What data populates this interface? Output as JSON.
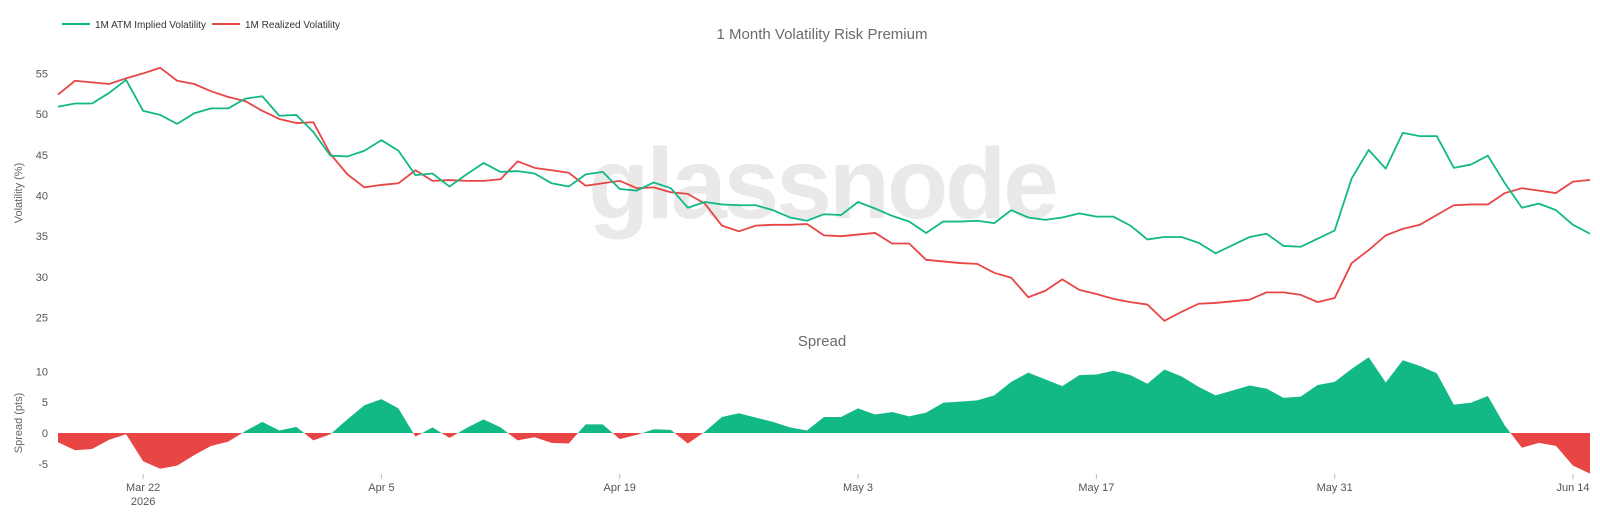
{
  "chart_data": [
    {
      "type": "line",
      "title": "1 Month Volatility Risk Premium",
      "ylabel": "Volatility (%)",
      "ylim": [
        22,
        58
      ],
      "yticks": [
        25,
        30,
        35,
        40,
        45,
        50,
        55
      ],
      "grid": false,
      "legend_position": "top-left",
      "series": [
        {
          "name": "1M ATM Implied Volatility",
          "color": "#12b886",
          "values": [
            50.9,
            51.3,
            51.3,
            52.6,
            54.2,
            50.4,
            49.9,
            48.8,
            50.1,
            50.7,
            50.7,
            51.9,
            52.2,
            49.8,
            49.9,
            47.8,
            44.9,
            44.8,
            45.5,
            46.8,
            45.5,
            42.5,
            42.7,
            41.1,
            42.6,
            44.0,
            42.9,
            43.0,
            42.7,
            41.5,
            41.1,
            42.6,
            42.9,
            40.8,
            40.6,
            41.6,
            40.9,
            38.5,
            39.2,
            38.9,
            38.8,
            38.8,
            38.2,
            37.3,
            36.9,
            37.7,
            37.6,
            39.2,
            38.4,
            37.5,
            36.8,
            35.4,
            36.8,
            36.8,
            36.9,
            36.6,
            38.2,
            37.3,
            37.0,
            37.3,
            37.8,
            37.4,
            37.4,
            36.3,
            34.6,
            34.9,
            34.9,
            34.2,
            32.9,
            33.9,
            34.9,
            35.3,
            33.8,
            33.7,
            34.7,
            35.7,
            42.1,
            45.6,
            43.3,
            47.7,
            47.3,
            47.3,
            43.4,
            43.8,
            44.9,
            41.5,
            38.5,
            39.0,
            38.2,
            36.4,
            35.3
          ]
        },
        {
          "name": "1M Realized Volatility",
          "color": "#e84545",
          "values": [
            52.4,
            54.1,
            53.9,
            53.7,
            54.4,
            55.0,
            55.7,
            54.1,
            53.7,
            52.8,
            52.1,
            51.6,
            50.4,
            49.4,
            48.9,
            49.0,
            45.1,
            42.6,
            41.0,
            41.3,
            41.5,
            43.1,
            41.8,
            41.9,
            41.8,
            41.8,
            42.0,
            44.2,
            43.4,
            43.1,
            42.8,
            41.2,
            41.5,
            41.8,
            40.9,
            41.0,
            40.4,
            40.2,
            39.0,
            36.3,
            35.6,
            36.3,
            36.4,
            36.4,
            36.5,
            35.1,
            35.0,
            35.2,
            35.4,
            34.1,
            34.1,
            32.1,
            31.9,
            31.7,
            31.6,
            30.5,
            29.9,
            27.5,
            28.3,
            29.7,
            28.4,
            27.9,
            27.3,
            26.9,
            26.6,
            24.6,
            25.7,
            26.7,
            26.8,
            27.0,
            27.2,
            28.1,
            28.1,
            27.8,
            26.9,
            27.4,
            31.7,
            33.3,
            35.1,
            35.9,
            36.4,
            37.6,
            38.8,
            38.9,
            38.9,
            40.3,
            40.9,
            40.6,
            40.3,
            41.7,
            41.9
          ]
        }
      ]
    },
    {
      "type": "area",
      "title": "Spread",
      "ylabel": "Spread (pts)",
      "ylim": [
        -6.5,
        12.5
      ],
      "yticks": [
        -5,
        0,
        5,
        10
      ],
      "positive_color": "#12b886",
      "negative_color": "#e84545",
      "x_tick_labels": [
        {
          "index": 5,
          "label": "Mar 22",
          "sublabel": "2026"
        },
        {
          "index": 19,
          "label": "Apr 5",
          "sublabel": ""
        },
        {
          "index": 33,
          "label": "Apr 19",
          "sublabel": ""
        },
        {
          "index": 47,
          "label": "May 3",
          "sublabel": ""
        },
        {
          "index": 61,
          "label": "May 17",
          "sublabel": ""
        },
        {
          "index": 75,
          "label": "May 31",
          "sublabel": ""
        },
        {
          "index": 89,
          "label": "Jun 14",
          "sublabel": ""
        }
      ],
      "values": [
        -1.5,
        -2.8,
        -2.6,
        -1.1,
        -0.2,
        -4.6,
        -5.8,
        -5.3,
        -3.6,
        -2.1,
        -1.4,
        0.3,
        1.8,
        0.4,
        1.0,
        -1.2,
        -0.2,
        2.2,
        4.5,
        5.5,
        4.0,
        -0.6,
        0.9,
        -0.8,
        0.8,
        2.2,
        0.9,
        -1.2,
        -0.7,
        -1.6,
        -1.7,
        1.4,
        1.4,
        -1.0,
        -0.3,
        0.6,
        0.5,
        -1.7,
        0.2,
        2.6,
        3.2,
        2.5,
        1.8,
        0.9,
        0.4,
        2.6,
        2.6,
        4.0,
        3.0,
        3.4,
        2.7,
        3.3,
        4.9,
        5.1,
        5.3,
        6.1,
        8.3,
        9.8,
        8.7,
        7.6,
        9.4,
        9.5,
        10.1,
        9.4,
        8.0,
        10.3,
        9.2,
        7.5,
        6.1,
        6.9,
        7.7,
        7.2,
        5.7,
        5.9,
        7.8,
        8.3,
        10.4,
        12.3,
        8.2,
        11.8,
        10.9,
        9.7,
        4.6,
        4.9,
        6.0,
        1.2,
        -2.4,
        -1.6,
        -2.1,
        -5.3,
        -6.6
      ]
    }
  ],
  "watermark": "glassnode"
}
